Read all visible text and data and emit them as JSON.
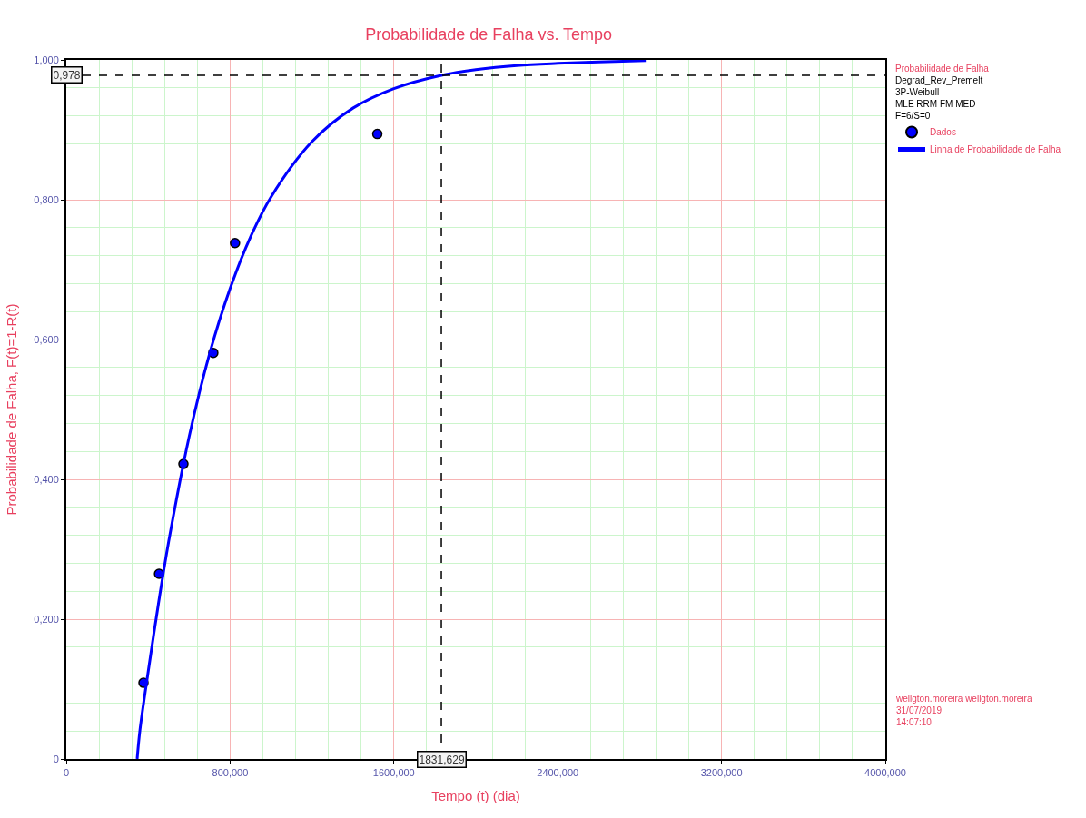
{
  "chart_data": {
    "type": "scatter",
    "title": "Probabilidade de Falha vs. Tempo",
    "xlabel": "Tempo (t) (dia)",
    "ylabel": "Probabilidade de Falha, F(t)=1-R(t)",
    "legend_title": "Probabilidade de Falha",
    "annotations": [
      "Degrad_Rev_Premelt\n3P-Weibull\nMLE RRM FM MED\nF=6/S=0",
      "wellgton.moreira wellgton.moreira\n31/07/2019\n14:07:10"
    ],
    "series": [
      {
        "name": "Dados",
        "color": "#0000ff",
        "marker": "circle",
        "x": [
          377,
          453,
          572,
          718,
          824,
          1519
        ],
        "values": [
          0.109,
          0.265,
          0.422,
          0.581,
          0.738,
          0.894
        ]
      },
      {
        "name": "Linha de Probabilidade de Falha",
        "type": "line",
        "color": "#0000ff",
        "marker": "none",
        "line_style": "solid",
        "x": [
          346,
          360,
          400,
          450,
          500,
          600,
          700,
          800,
          900,
          1000,
          1200,
          1400,
          1600,
          1832,
          2000,
          2200,
          2400,
          2600,
          2830
        ],
        "values": [
          0,
          0.042,
          0.125,
          0.222,
          0.311,
          0.461,
          0.58,
          0.673,
          0.747,
          0.804,
          0.883,
          0.931,
          0.959,
          0.978,
          0.986,
          0.992,
          0.995,
          0.997,
          0.999
        ]
      }
    ],
    "xlim": [
      0,
      4000
    ],
    "ylim": [
      0,
      1
    ],
    "xticks": [
      0,
      {
        "value": 160,
        "label": null
      },
      {
        "value": 320,
        "label": null
      },
      {
        "value": 480,
        "label": null
      },
      {
        "value": 640,
        "label": null
      },
      {
        "value": 800,
        "label": "800,000"
      },
      {
        "value": 960,
        "label": null
      },
      {
        "value": 1120,
        "label": null
      },
      {
        "value": 1280,
        "label": null
      },
      {
        "value": 1440,
        "label": null
      },
      {
        "value": 1600,
        "label": "1600,000"
      },
      {
        "value": 1760,
        "label": null
      },
      {
        "value": 1920,
        "label": null
      },
      {
        "value": 2080,
        "label": null
      },
      {
        "value": 2240,
        "label": null
      },
      {
        "value": 2400,
        "label": "2400,000"
      },
      {
        "value": 2560,
        "label": null
      },
      {
        "value": 2720,
        "label": null
      },
      {
        "value": 2880,
        "label": null
      },
      {
        "value": 3040,
        "label": null
      },
      {
        "value": 3200,
        "label": "3200,000"
      },
      {
        "value": 3360,
        "label": null
      },
      {
        "value": 3520,
        "label": null
      },
      {
        "value": 3680,
        "label": null
      },
      {
        "value": 3840,
        "label": null
      },
      {
        "value": 4000,
        "label": "4000,000"
      }
    ],
    "yticks": [
      0,
      {
        "value": 0.04,
        "label": null
      },
      {
        "value": 0.08,
        "label": null
      },
      {
        "value": 0.12,
        "label": null
      },
      {
        "value": 0.16,
        "label": null
      },
      {
        "value": 0.2,
        "label": "0,200"
      },
      {
        "value": 0.24,
        "label": null
      },
      {
        "value": 0.28,
        "label": null
      },
      {
        "value": 0.32,
        "label": null
      },
      {
        "value": 0.36,
        "label": null
      },
      {
        "value": 0.4,
        "label": "0,400"
      },
      {
        "value": 0.44,
        "label": null
      },
      {
        "value": 0.48,
        "label": null
      },
      {
        "value": 0.52,
        "label": null
      },
      {
        "value": 0.56,
        "label": null
      },
      {
        "value": 0.6,
        "label": "0,600"
      },
      {
        "value": 0.64,
        "label": null
      },
      {
        "value": 0.68,
        "label": null
      },
      {
        "value": 0.72,
        "label": null
      },
      {
        "value": 0.76,
        "label": null
      },
      {
        "value": 0.8,
        "label": "0,800"
      },
      {
        "value": 0.84,
        "label": null
      },
      {
        "value": 0.88,
        "label": null
      },
      {
        "value": 0.92,
        "label": null
      },
      {
        "value": 0.96,
        "label": null
      },
      {
        "value": 1,
        "label": "1,000"
      }
    ],
    "ref_lines": [
      {
        "axis": "y",
        "value": 0.978,
        "label": "0,978",
        "color": "#000000",
        "line_style": "dashed"
      },
      {
        "axis": "x",
        "value": 1831.629,
        "label": "1831,629",
        "color": "#000000",
        "line_style": "dashed"
      }
    ],
    "grid": true,
    "legend": "top right"
  }
}
